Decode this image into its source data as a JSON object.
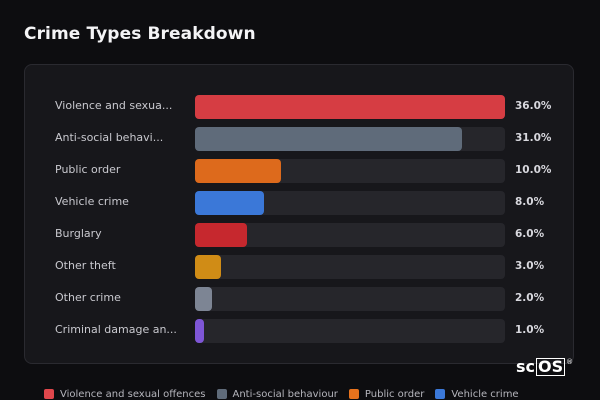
{
  "title": "Crime Types Breakdown",
  "chart_data": {
    "type": "bar",
    "orientation": "horizontal",
    "categories": [
      "Violence and sexua...",
      "Anti-social behavi...",
      "Public order",
      "Vehicle crime",
      "Burglary",
      "Other theft",
      "Other crime",
      "Criminal damage an..."
    ],
    "values": [
      36.0,
      31.0,
      10.0,
      8.0,
      6.0,
      3.0,
      2.0,
      1.0
    ],
    "value_labels": [
      "36.0%",
      "31.0%",
      "10.0%",
      "8.0%",
      "6.0%",
      "3.0%",
      "2.0%",
      "1.0%"
    ],
    "colors": [
      "#d63d43",
      "#5f6b7a",
      "#dd6a1c",
      "#3b78d8",
      "#c6282e",
      "#d08c16",
      "#7d8594",
      "#7e56d6"
    ],
    "xlim": [
      0,
      36.0
    ],
    "grid": false,
    "legend_placement": "bottom"
  },
  "legend": [
    {
      "label": "Violence and sexual offences",
      "color": "#e0474c"
    },
    {
      "label": "Anti-social behaviour",
      "color": "#5f6b7a"
    },
    {
      "label": "Public order",
      "color": "#e8731d"
    },
    {
      "label": "Vehicle crime",
      "color": "#3b78d8"
    }
  ],
  "logo": {
    "text_a": "sc",
    "text_b": "OS",
    "mark": "®"
  }
}
